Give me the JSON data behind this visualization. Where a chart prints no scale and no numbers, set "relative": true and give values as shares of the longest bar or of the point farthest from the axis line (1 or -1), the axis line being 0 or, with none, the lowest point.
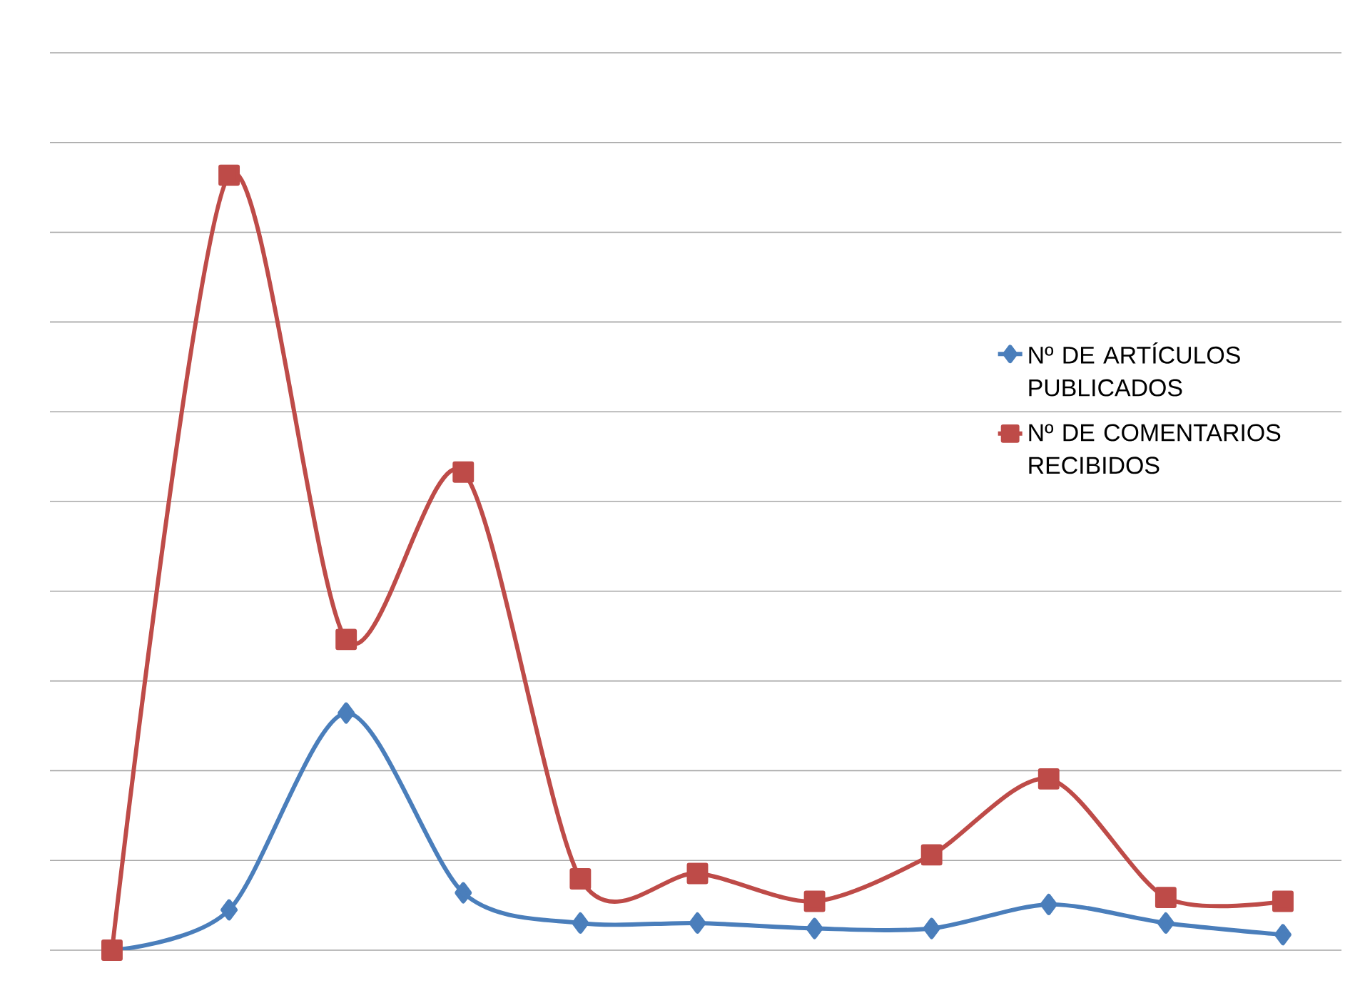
{
  "chart_data": {
    "type": "line",
    "relative": true,
    "categories": [
      null,
      null,
      null,
      null,
      null,
      null,
      null,
      null,
      null,
      null,
      null
    ],
    "series": [
      {
        "name": "Nº DE ARTÍCULOS PUBLICADOS",
        "color": "#4a7ebb",
        "marker": "diamond",
        "values": [
          0,
          0.052,
          0.306,
          0.074,
          0.035,
          0.035,
          0.028,
          0.028,
          0.059,
          0.035,
          0.02
        ]
      },
      {
        "name": "Nº DE COMENTARIOS RECIBIDOS",
        "color": "#be4b48",
        "marker": "square",
        "values": [
          0,
          1,
          0.401,
          0.617,
          0.092,
          0.099,
          0.063,
          0.123,
          0.221,
          0.068,
          0.063
        ]
      }
    ],
    "grid": "y",
    "legend": "right"
  }
}
